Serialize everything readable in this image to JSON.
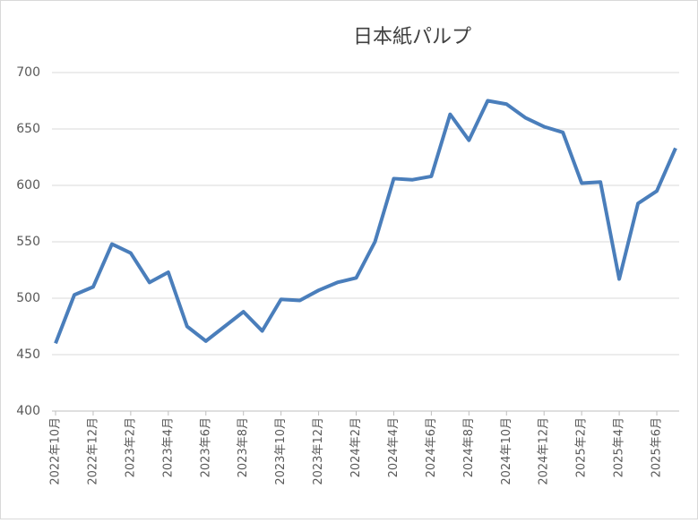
{
  "chart_data": {
    "type": "line",
    "title": "日本紙パルプ",
    "categories": [
      "2022年10月",
      null,
      "2022年12月",
      null,
      "2023年2月",
      null,
      "2023年4月",
      null,
      "2023年6月",
      null,
      "2023年8月",
      null,
      "2023年10月",
      null,
      "2023年12月",
      null,
      "2024年2月",
      null,
      "2024年4月",
      null,
      "2024年6月",
      null,
      "2024年8月",
      null,
      "2024年10月",
      null,
      "2024年12月",
      null,
      "2025年2月",
      null,
      "2025年4月",
      null,
      "2025年6月",
      null
    ],
    "series": [
      {
        "color": "#4a7ebb",
        "values": [
          460,
          503,
          510,
          548,
          540,
          514,
          523,
          475,
          462,
          475,
          488,
          471,
          499,
          498,
          507,
          514,
          518,
          550,
          606,
          605,
          608,
          663,
          640,
          675,
          672,
          660,
          652,
          647,
          602,
          603,
          517,
          584,
          595,
          633
        ]
      }
    ],
    "ylim": [
      400,
      700
    ],
    "yticks": [
      400,
      450,
      500,
      550,
      600,
      650,
      700
    ],
    "grid": true
  }
}
